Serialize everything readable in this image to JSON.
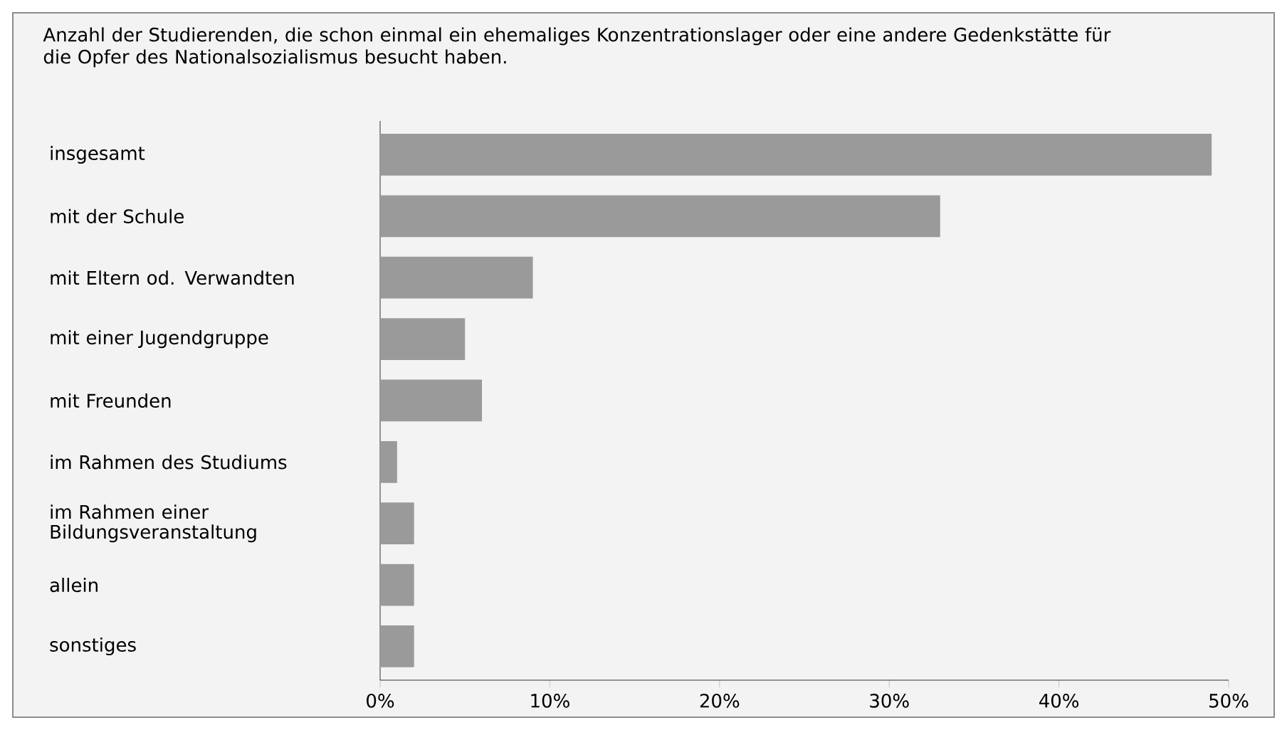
{
  "chart_data": {
    "type": "bar",
    "orientation": "horizontal",
    "title": "Anzahl der Studierenden, die schon einmal ein ehemaliges Konzentrationslager oder eine andere Gedenkstätte für die Opfer des Nationalsozialismus besucht haben.",
    "categories": [
      "insgesamt",
      "mit der Schule",
      "mit Eltern od. Verwandten",
      "mit einer Jugendgruppe",
      "mit Freunden",
      "im Rahmen des Studiums",
      "im Rahmen einer Bildungsveranstaltung",
      "allein",
      "sonstiges"
    ],
    "values": [
      49,
      33,
      9,
      5,
      6,
      1,
      2,
      2,
      2
    ],
    "color": "#9a9a9a",
    "xlim": [
      0,
      50
    ],
    "xticks": [
      {
        "value": 0,
        "label": "0%"
      },
      {
        "value": 10,
        "label": "10%"
      },
      {
        "value": 20,
        "label": "20%"
      },
      {
        "value": 30,
        "label": "30%"
      },
      {
        "value": 40,
        "label": "40%"
      },
      {
        "value": 50,
        "label": "50%"
      }
    ],
    "grid": false
  }
}
